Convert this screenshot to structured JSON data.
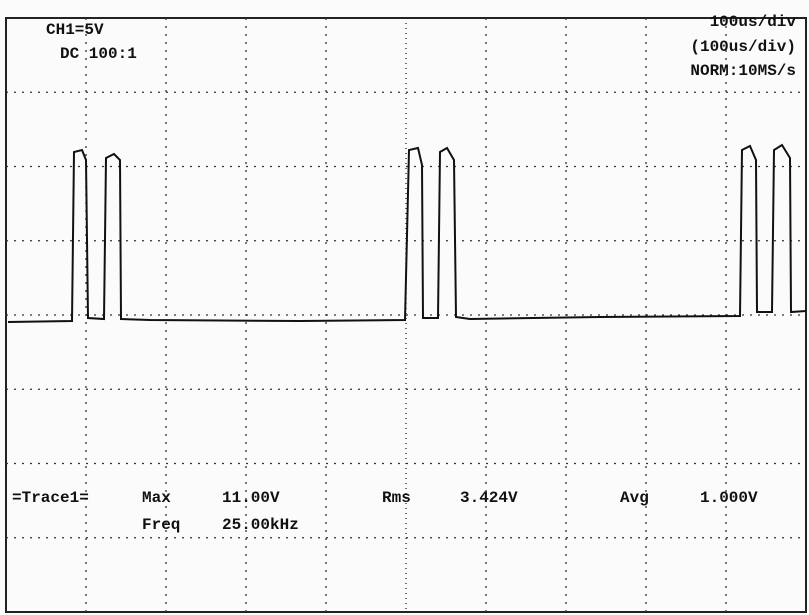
{
  "header": {
    "channel": "CH1=5V",
    "coupling": "DC 100:1",
    "timebase": "100us/div",
    "timebase_sub": "(100us/div)",
    "mode": "NORM:10MS/s"
  },
  "measurements": {
    "trace": "=Trace1=",
    "max_label": "Max",
    "max_value": "11.00V",
    "rms_label": "Rms",
    "rms_value": "3.424V",
    "avg_label": "Avg",
    "avg_value": "1.000V",
    "freq_label": "Freq",
    "freq_value": "25.00kHz"
  }
}
